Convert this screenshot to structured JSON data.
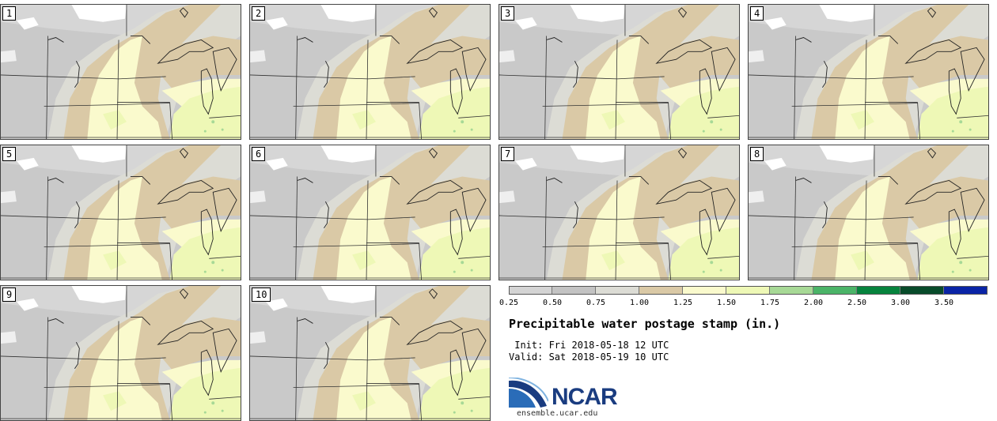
{
  "panels": [
    {
      "label": "1"
    },
    {
      "label": "2"
    },
    {
      "label": "3"
    },
    {
      "label": "4"
    },
    {
      "label": "5"
    },
    {
      "label": "6"
    },
    {
      "label": "7"
    },
    {
      "label": "8"
    },
    {
      "label": "9"
    },
    {
      "label": "10"
    }
  ],
  "colorbar": {
    "bins": [
      {
        "from": 0.25,
        "to": 0.5,
        "color": "#d4d4d4"
      },
      {
        "from": 0.5,
        "to": 0.75,
        "color": "#c3c3c3"
      },
      {
        "from": 0.75,
        "to": 1.0,
        "color": "#dcdcd5"
      },
      {
        "from": 1.0,
        "to": 1.25,
        "color": "#dac9a6"
      },
      {
        "from": 1.25,
        "to": 1.5,
        "color": "#fafacd"
      },
      {
        "from": 1.5,
        "to": 1.75,
        "color": "#eef8b6"
      },
      {
        "from": 1.75,
        "to": 2.0,
        "color": "#a7d996"
      },
      {
        "from": 2.0,
        "to": 2.5,
        "color": "#4bb468"
      },
      {
        "from": 2.5,
        "to": 3.0,
        "color": "#06833d"
      },
      {
        "from": 3.0,
        "to": 3.5,
        "color": "#084b2a"
      },
      {
        "from": 3.5,
        "to": 4.0,
        "color": "#0a24a6"
      }
    ],
    "ticks": [
      "0.25",
      "0.50",
      "0.75",
      "1.00",
      "1.25",
      "1.50",
      "1.75",
      "2.00",
      "2.50",
      "3.00",
      "3.50"
    ]
  },
  "title": "Precipitable water postage stamp (in.)",
  "init_text": " Init: Fri 2018-05-18 12 UTC",
  "valid_text": "Valid: Sat 2018-05-19 10 UTC",
  "logo": {
    "name": "NCAR",
    "url": "ensemble.ucar.edu",
    "color": "#1a3c80"
  },
  "map_colors": {
    "gray_dark": "#c3c3c3",
    "gray_light": "#d4d4d4",
    "gray_beige": "#dcdcd5",
    "tan": "#dac9a6",
    "cream": "#fafacd",
    "lime": "#eef8b6",
    "green": "#a7d996",
    "white": "#ffffff"
  }
}
